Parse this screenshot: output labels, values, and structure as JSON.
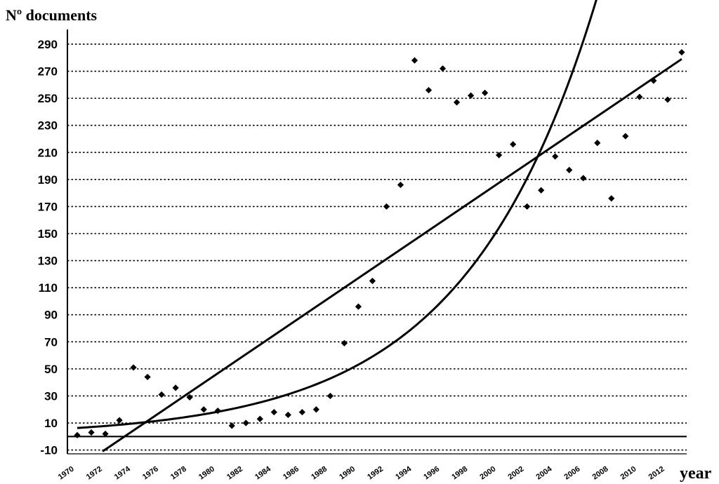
{
  "chart_data": {
    "type": "scatter",
    "ylabel": "Nº documents",
    "xlabel": "year",
    "ylim": [
      -10,
      300
    ],
    "xlim": [
      1970,
      2014
    ],
    "yticks": [
      -10,
      10,
      30,
      50,
      70,
      90,
      110,
      130,
      150,
      170,
      190,
      210,
      230,
      250,
      270,
      290
    ],
    "xticks": [
      1970,
      1972,
      1974,
      1976,
      1978,
      1980,
      1982,
      1984,
      1986,
      1988,
      1990,
      1992,
      1994,
      1996,
      1998,
      2000,
      2002,
      2004,
      2006,
      2008,
      2010,
      2012
    ],
    "grid": "horizontal dotted",
    "points": [
      {
        "x": 1970.7,
        "y": 1
      },
      {
        "x": 1971.7,
        "y": 3
      },
      {
        "x": 1972.7,
        "y": 2
      },
      {
        "x": 1973.7,
        "y": 12
      },
      {
        "x": 1974.7,
        "y": 51
      },
      {
        "x": 1975.7,
        "y": 44
      },
      {
        "x": 1976.7,
        "y": 31
      },
      {
        "x": 1977.7,
        "y": 36
      },
      {
        "x": 1978.7,
        "y": 29
      },
      {
        "x": 1979.7,
        "y": 20
      },
      {
        "x": 1980.7,
        "y": 19
      },
      {
        "x": 1981.7,
        "y": 8
      },
      {
        "x": 1982.7,
        "y": 10
      },
      {
        "x": 1983.7,
        "y": 13
      },
      {
        "x": 1984.7,
        "y": 18
      },
      {
        "x": 1985.7,
        "y": 16
      },
      {
        "x": 1986.7,
        "y": 18
      },
      {
        "x": 1987.7,
        "y": 20
      },
      {
        "x": 1988.7,
        "y": 30
      },
      {
        "x": 1989.7,
        "y": 69
      },
      {
        "x": 1990.7,
        "y": 96
      },
      {
        "x": 1991.7,
        "y": 115
      },
      {
        "x": 1992.7,
        "y": 170
      },
      {
        "x": 1993.7,
        "y": 186
      },
      {
        "x": 1994.7,
        "y": 278
      },
      {
        "x": 1995.7,
        "y": 256
      },
      {
        "x": 1996.7,
        "y": 272
      },
      {
        "x": 1997.7,
        "y": 247
      },
      {
        "x": 1998.7,
        "y": 252
      },
      {
        "x": 1999.7,
        "y": 254
      },
      {
        "x": 2000.7,
        "y": 208
      },
      {
        "x": 2001.7,
        "y": 216
      },
      {
        "x": 2002.7,
        "y": 170
      },
      {
        "x": 2003.7,
        "y": 182
      },
      {
        "x": 2004.7,
        "y": 207
      },
      {
        "x": 2005.7,
        "y": 197
      },
      {
        "x": 2006.7,
        "y": 191
      },
      {
        "x": 2007.7,
        "y": 217
      },
      {
        "x": 2008.7,
        "y": 176
      },
      {
        "x": 2009.7,
        "y": 222
      },
      {
        "x": 2010.7,
        "y": 251
      },
      {
        "x": 2011.7,
        "y": 263
      },
      {
        "x": 2012.7,
        "y": 249
      },
      {
        "x": 2013.7,
        "y": 284
      }
    ],
    "trendlines": [
      {
        "type": "linear",
        "from": [
          1972.5,
          -11
        ],
        "to": [
          2013.7,
          279
        ]
      },
      {
        "type": "exponential",
        "a": 6.3,
        "b": 0.1066,
        "x0": 1970.7,
        "x_end": 2008.15
      }
    ]
  }
}
